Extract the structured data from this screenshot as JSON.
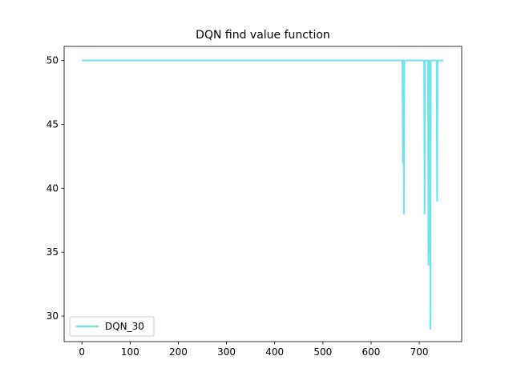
{
  "chart_data": {
    "type": "line",
    "title": "DQN find value function",
    "xlabel": "",
    "ylabel": "",
    "xlim": [
      -37,
      788
    ],
    "ylim": [
      28,
      51.1
    ],
    "xticks": [
      0,
      100,
      200,
      300,
      400,
      500,
      600,
      700
    ],
    "yticks": [
      30,
      35,
      40,
      45,
      50
    ],
    "grid": false,
    "legend": {
      "placement": "lower-left"
    },
    "series": [
      {
        "name": "DQN_30",
        "color": "#6fe3ee",
        "x": [
          0,
          665,
          666,
          667,
          668,
          669,
          710,
          711,
          712,
          713,
          718,
          719,
          720,
          721,
          722,
          723,
          724,
          725,
          736,
          737,
          738,
          750
        ],
        "y": [
          50,
          50,
          42,
          50,
          38,
          50,
          50,
          38,
          50,
          50,
          50,
          34,
          50,
          35,
          50,
          29,
          50,
          50,
          50,
          39,
          50,
          50
        ]
      }
    ]
  }
}
